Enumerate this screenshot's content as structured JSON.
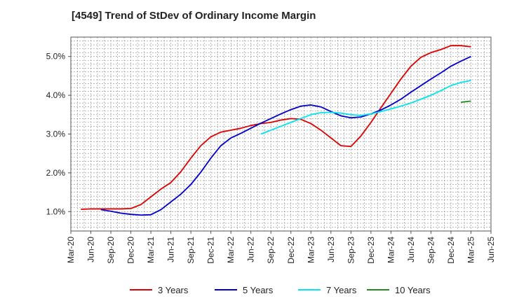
{
  "chart_data": {
    "type": "line",
    "title": "[4549]  Trend of StDev of Ordinary Income Margin",
    "xlabel": "",
    "ylabel": "",
    "x_tick_labels": [
      "Mar-20",
      "Jun-20",
      "Sep-20",
      "Dec-20",
      "Mar-21",
      "Jun-21",
      "Sep-21",
      "Dec-21",
      "Mar-22",
      "Jun-22",
      "Sep-22",
      "Dec-22",
      "Mar-23",
      "Jun-23",
      "Sep-23",
      "Dec-23",
      "Mar-24",
      "Jun-24",
      "Sep-24",
      "Dec-24",
      "Mar-25",
      "Jun-25"
    ],
    "y_ticks": [
      1.0,
      2.0,
      3.0,
      4.0,
      5.0
    ],
    "y_tick_labels": [
      "1.0%",
      "2.0%",
      "3.0%",
      "4.0%",
      "5.0%"
    ],
    "ylim": [
      0.5,
      5.5
    ],
    "grid": true,
    "legend_position": "bottom",
    "series": [
      {
        "name": "3 Years",
        "color": "#dd0000",
        "values": [
          1.06,
          1.07,
          1.07,
          1.07,
          1.07,
          1.08,
          1.18,
          1.38,
          1.58,
          1.75,
          2.03,
          2.38,
          2.7,
          2.93,
          3.05,
          3.1,
          3.15,
          3.22,
          3.27,
          3.3,
          3.36,
          3.4,
          3.38,
          3.27,
          3.1,
          2.9,
          2.7,
          2.68,
          2.95,
          3.3,
          3.68,
          4.05,
          4.42,
          4.75,
          4.98,
          5.1,
          5.18,
          5.28,
          5.28,
          5.25
        ]
      },
      {
        "name": "5 Years",
        "color": "#0000cc",
        "values": [
          1.05,
          1.01,
          0.96,
          0.93,
          0.91,
          0.92,
          1.05,
          1.25,
          1.45,
          1.7,
          2.02,
          2.38,
          2.7,
          2.9,
          3.02,
          3.15,
          3.28,
          3.4,
          3.52,
          3.63,
          3.72,
          3.75,
          3.7,
          3.58,
          3.47,
          3.42,
          3.44,
          3.52,
          3.62,
          3.75,
          3.9,
          4.08,
          4.25,
          4.42,
          4.58,
          4.75,
          4.88,
          5.0
        ]
      },
      {
        "name": "7 Years",
        "color": "#00e5ee",
        "values": [
          3.0,
          3.1,
          3.2,
          3.3,
          3.4,
          3.5,
          3.55,
          3.56,
          3.54,
          3.5,
          3.48,
          3.52,
          3.58,
          3.65,
          3.72,
          3.8,
          3.9,
          4.0,
          4.12,
          4.25,
          4.33,
          4.38
        ]
      },
      {
        "name": "10 Years",
        "color": "#228b22",
        "values": [
          3.82,
          3.85
        ]
      }
    ]
  }
}
